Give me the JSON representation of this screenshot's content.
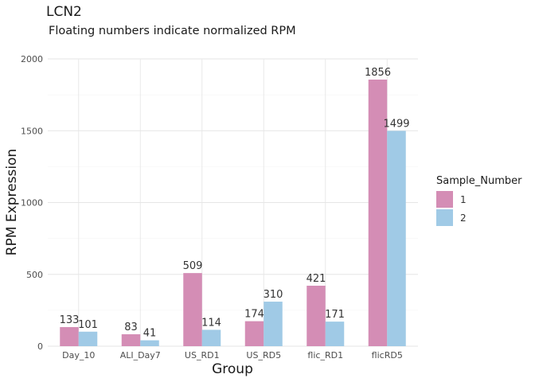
{
  "chart_data": {
    "type": "bar",
    "title": "LCN2",
    "subtitle": "Floating numbers indicate normalized RPM",
    "xlabel": "Group",
    "ylabel": "RPM Expression",
    "categories": [
      "Day_10",
      "ALI_Day7",
      "US_RD1",
      "US_RD5",
      "flic_RD1",
      "flicRD5"
    ],
    "series": [
      {
        "name": "1",
        "values": [
          133,
          83,
          509,
          174,
          421,
          1856
        ],
        "color": "#d48db5"
      },
      {
        "name": "2",
        "values": [
          101,
          41,
          114,
          310,
          171,
          1499
        ],
        "color": "#a0cae6"
      }
    ],
    "ylim": [
      0,
      2000
    ],
    "yticks": [
      0,
      500,
      1000,
      1500,
      2000
    ],
    "grid": true,
    "legend": {
      "title": "Sample_Number",
      "placement": "right"
    }
  }
}
